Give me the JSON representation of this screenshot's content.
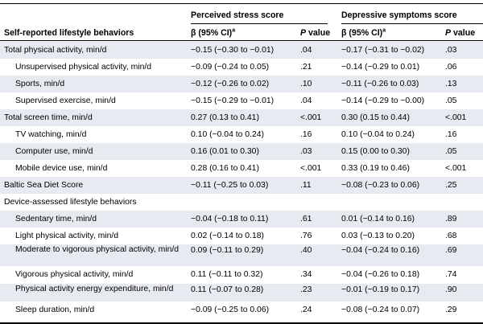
{
  "table": {
    "group_headers": [
      "Perceived stress score",
      "Depressive symptoms score"
    ],
    "row_header": "Self-reported lifestyle behaviors",
    "col_beta": "β (95% CI)",
    "col_beta_sup": "a",
    "col_p_italic": "P",
    "col_p_rest": " value",
    "rows": [
      {
        "label": "Total physical activity, min/d",
        "indent": false,
        "stress_beta": "−0.15 (−0.30 to −0.01)",
        "stress_p": ".04",
        "dep_beta": "−0.17 (−0.31 to −0.02)",
        "dep_p": ".03"
      },
      {
        "label": "Unsupervised physical activity, min/d",
        "indent": true,
        "stress_beta": "−0.09 (−0.24 to 0.05)",
        "stress_p": ".21",
        "dep_beta": "−0.14 (−0.29 to 0.01)",
        "dep_p": ".06"
      },
      {
        "label": "Sports, min/d",
        "indent": true,
        "stress_beta": "−0.12 (−0.26 to 0.02)",
        "stress_p": ".10",
        "dep_beta": "−0.11 (−0.26 to 0.03)",
        "dep_p": ".13"
      },
      {
        "label": "Supervised exercise, min/d",
        "indent": true,
        "stress_beta": "−0.15 (−0.29 to −0.01)",
        "stress_p": ".04",
        "dep_beta": "−0.14 (−0.29 to −0.00)",
        "dep_p": ".05"
      },
      {
        "label": "Total screen time, min/d",
        "indent": false,
        "stress_beta": "0.27 (0.13 to 0.41)",
        "stress_p": "<.001",
        "dep_beta": "0.30 (0.15 to 0.44)",
        "dep_p": "<.001"
      },
      {
        "label": "TV watching, min/d",
        "indent": true,
        "stress_beta": "0.10 (−0.04 to 0.24)",
        "stress_p": ".16",
        "dep_beta": "0.10 (−0.04 to 0.24)",
        "dep_p": ".16"
      },
      {
        "label": "Computer use, min/d",
        "indent": true,
        "stress_beta": "0.16 (0.01 to 0.30)",
        "stress_p": ".03",
        "dep_beta": "0.15 (0.00 to 0.30)",
        "dep_p": ".05"
      },
      {
        "label": "Mobile device use, min/d",
        "indent": true,
        "stress_beta": "0.28 (0.16 to 0.41)",
        "stress_p": "<.001",
        "dep_beta": "0.33 (0.19 to 0.46)",
        "dep_p": "<.001"
      },
      {
        "label": "Baltic Sea Diet Score",
        "indent": false,
        "stress_beta": "−0.11 (−0.25 to 0.03)",
        "stress_p": ".11",
        "dep_beta": "−0.08 (−0.23 to 0.06)",
        "dep_p": ".25"
      },
      {
        "label": "Device-assessed lifestyle behaviors",
        "indent": false,
        "stress_beta": "",
        "stress_p": "",
        "dep_beta": "",
        "dep_p": ""
      },
      {
        "label": "Sedentary time, min/d",
        "indent": true,
        "stress_beta": "−0.04 (−0.18 to 0.11)",
        "stress_p": ".61",
        "dep_beta": "0.01 (−0.14 to 0.16)",
        "dep_p": ".89"
      },
      {
        "label": "Light physical activity, min/d",
        "indent": true,
        "stress_beta": "0.02 (−0.14 to 0.18)",
        "stress_p": ".76",
        "dep_beta": "0.03 (−0.13 to 0.20)",
        "dep_p": ".68"
      },
      {
        "label": "Moderate to vigorous physical activity, min/d",
        "indent": true,
        "stress_beta": "0.09 (−0.11 to 0.29)",
        "stress_p": ".40",
        "dep_beta": "−0.04 (−0.24 to 0.16)",
        "dep_p": ".69"
      },
      {
        "label": "Vigorous physical activity, min/d",
        "indent": true,
        "stress_beta": "0.11 (−0.11 to 0.32)",
        "stress_p": ".34",
        "dep_beta": "−0.04 (−0.26 to 0.18)",
        "dep_p": ".74"
      },
      {
        "label": "Physical activity energy expenditure, min/d",
        "indent": true,
        "stress_beta": "0.11 (−0.07 to 0.28)",
        "stress_p": ".23",
        "dep_beta": "−0.01 (−0.19 to 0.17)",
        "dep_p": ".90"
      },
      {
        "label": "Sleep duration, min/d",
        "indent": true,
        "stress_beta": "−0.09 (−0.25 to 0.06)",
        "stress_p": ".24",
        "dep_beta": "−0.08 (−0.24 to 0.07)",
        "dep_p": ".29"
      }
    ]
  },
  "colors": {
    "stripe": "#e8eaf1",
    "rule": "#000000"
  }
}
